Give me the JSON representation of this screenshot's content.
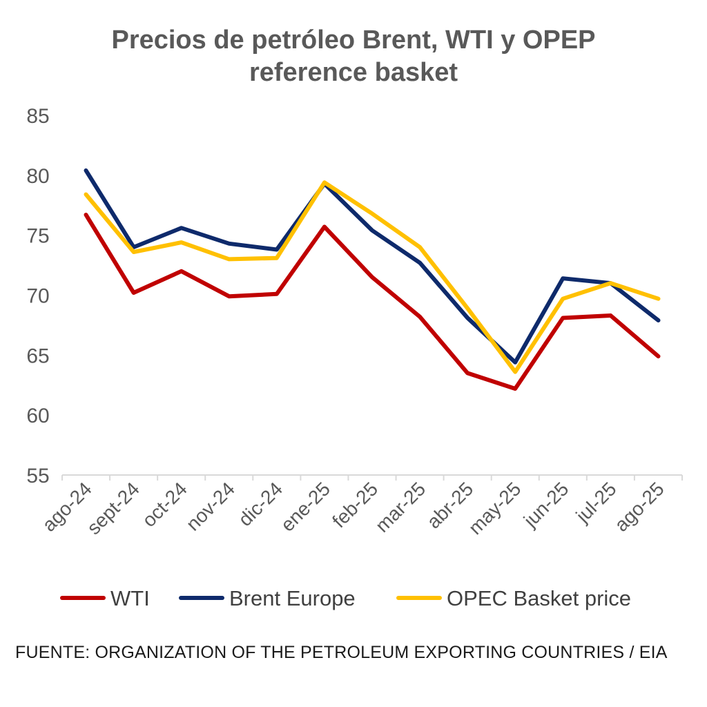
{
  "chart_data": {
    "type": "line",
    "title_lines": [
      "Precios de petróleo Brent, WTI  y OPEP",
      "reference basket"
    ],
    "categories": [
      "ago-24",
      "sept-24",
      "oct-24",
      "nov-24",
      "dic-24",
      "ene-25",
      "feb-25",
      "mar-25",
      "abr-25",
      "may-25",
      "jun-25",
      "jul-25",
      "ago-25"
    ],
    "ylim": [
      55,
      85
    ],
    "yticks": [
      "55",
      "60",
      "65",
      "70",
      "75",
      "80",
      "85"
    ],
    "grid": false,
    "legend_position": "bottom",
    "series": [
      {
        "name": "WTI",
        "color": "#C00000",
        "values": [
          76.7,
          70.2,
          72.0,
          69.9,
          70.1,
          75.7,
          71.5,
          68.2,
          63.5,
          62.2,
          68.1,
          68.3,
          64.9
        ]
      },
      {
        "name": "Brent Europe",
        "color": "#0E2A6B",
        "values": [
          80.4,
          74.0,
          75.6,
          74.3,
          73.8,
          79.3,
          75.4,
          72.7,
          68.1,
          64.4,
          71.4,
          71.0,
          67.9
        ]
      },
      {
        "name": "OPEC Basket price",
        "color": "#FFC000",
        "values": [
          78.4,
          73.6,
          74.4,
          73.0,
          73.1,
          79.4,
          76.8,
          74.0,
          68.9,
          63.6,
          69.7,
          71.0,
          69.7
        ]
      }
    ]
  },
  "source_note": "FUENTE: ORGANIZATION OF THE PETROLEUM EXPORTING COUNTRIES / EIA"
}
